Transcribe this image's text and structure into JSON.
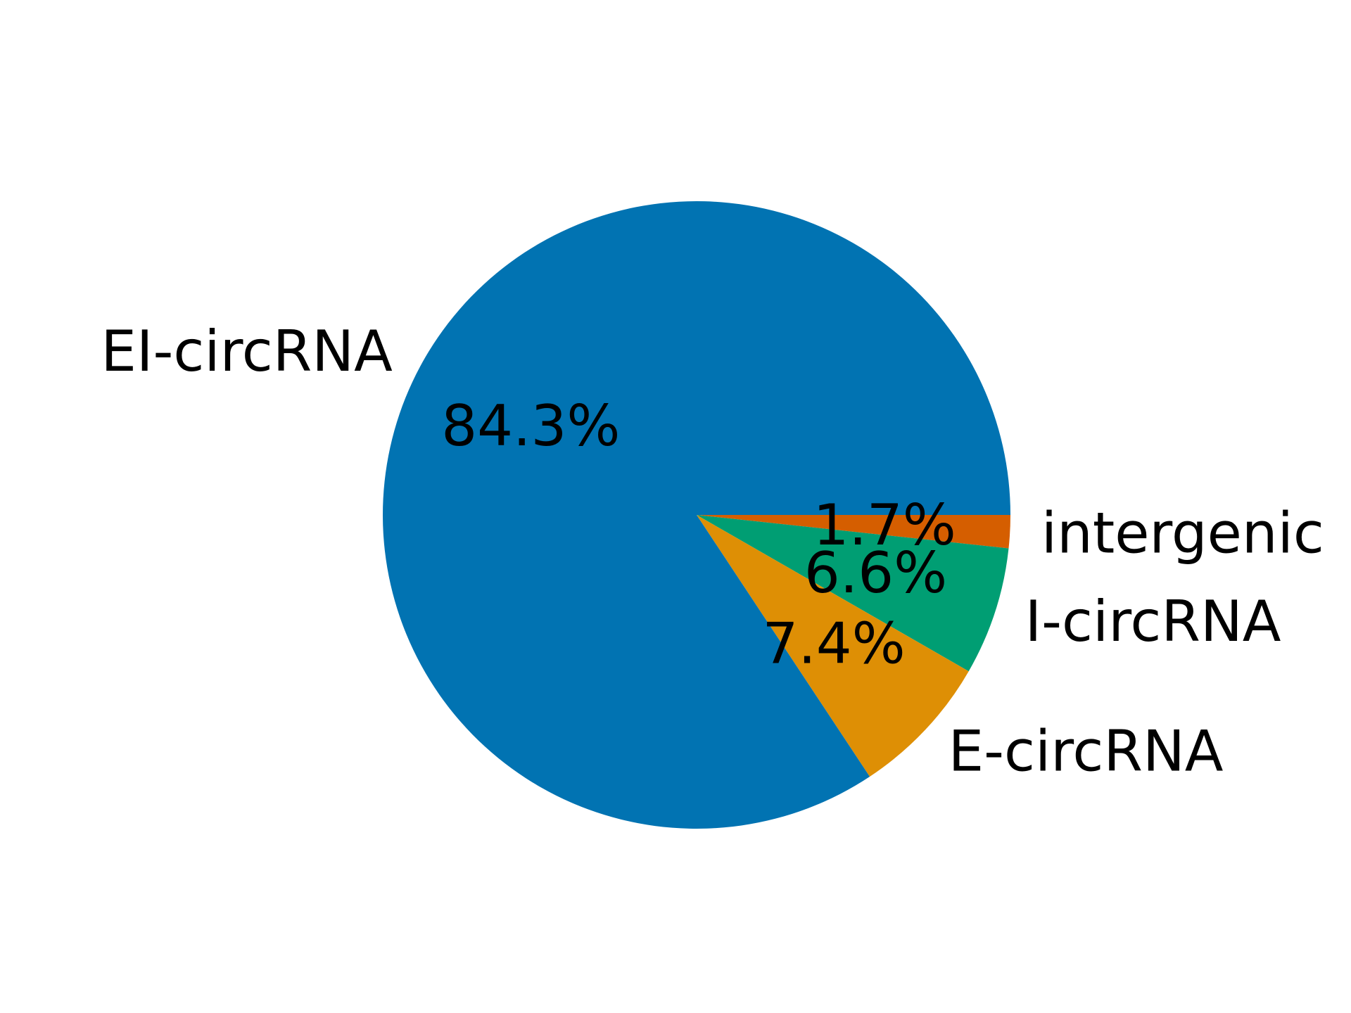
{
  "chart_data": {
    "type": "pie",
    "title": "",
    "slices": [
      {
        "label": "intergenic",
        "value": 1.7,
        "pct_label": "1.7%",
        "color": "#D55E00"
      },
      {
        "label": "I-circRNA",
        "value": 6.6,
        "pct_label": "6.6%",
        "color": "#009E73"
      },
      {
        "label": "E-circRNA",
        "value": 7.4,
        "pct_label": "7.4%",
        "color": "#DE8F05"
      },
      {
        "label": "EI-circRNA",
        "value": 84.3,
        "pct_label": "84.3%",
        "color": "#0173B2"
      }
    ],
    "start_angle_deg": 0,
    "direction": "clockwise",
    "legend": "none"
  }
}
